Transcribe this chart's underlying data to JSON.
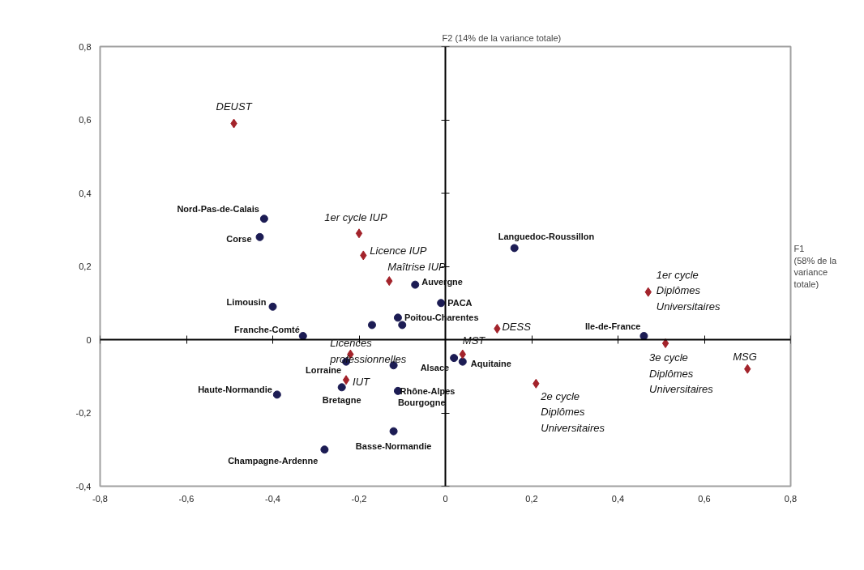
{
  "chart_data": {
    "type": "scatter",
    "xlabel": "F1\n(58% de la\nvariance\ntotale)",
    "ylabel": "F2 (14% de la variance totale)",
    "xlim": [
      -0.8,
      0.8
    ],
    "ylim": [
      -0.4,
      0.8
    ],
    "xticks": [
      {
        "value": -0.8,
        "label": "-0,8"
      },
      {
        "value": -0.6,
        "label": "-0,6"
      },
      {
        "value": -0.4,
        "label": "-0,4"
      },
      {
        "value": -0.2,
        "label": "-0,2"
      },
      0,
      {
        "value": 0.2,
        "label": "0,2"
      },
      {
        "value": 0.4,
        "label": "0,4"
      },
      {
        "value": 0.6,
        "label": "0,6"
      },
      {
        "value": 0.8,
        "label": "0,8"
      }
    ],
    "yticks": [
      {
        "value": -0.4,
        "label": "-0,4"
      },
      {
        "value": -0.2,
        "label": "-0,2"
      },
      0,
      {
        "value": 0.2,
        "label": "0,2"
      },
      {
        "value": 0.4,
        "label": "0,4"
      },
      {
        "value": 0.6,
        "label": "0,6"
      },
      {
        "value": 0.8,
        "label": "0,8"
      }
    ],
    "series": [
      {
        "color": "#1c1c54",
        "marker": "circle",
        "x": [
          -0.42,
          -0.43,
          0.16,
          -0.07,
          -0.01,
          -0.4,
          -0.11,
          -0.1,
          -0.17,
          -0.33,
          0.46,
          -0.23,
          -0.12,
          -0.11,
          -0.24,
          -0.39,
          -0.12,
          -0.28,
          0.04,
          0.02
        ],
        "values": [
          0.33,
          0.28,
          0.25,
          0.15,
          0.1,
          0.09,
          0.06,
          0.04,
          0.04,
          0.01,
          0.01,
          -0.06,
          -0.07,
          -0.14,
          -0.13,
          -0.15,
          -0.25,
          -0.3,
          -0.06,
          -0.05
        ]
      },
      {
        "color": "#a3232b",
        "marker": "diamond",
        "x": [
          -0.49,
          -0.2,
          -0.19,
          -0.13,
          -0.22,
          -0.23,
          0.04,
          0.12,
          0.21,
          0.47,
          0.51,
          0.7
        ],
        "values": [
          0.59,
          0.29,
          0.23,
          0.16,
          -0.04,
          -0.11,
          -0.04,
          0.03,
          -0.12,
          0.13,
          -0.01,
          -0.08
        ]
      }
    ],
    "annotations": [
      {
        "text": "Nord-Pas-de-Calais",
        "x": -0.42,
        "y": 0.33
      },
      {
        "text": "Corse",
        "x": -0.43,
        "y": 0.28
      },
      {
        "text": "Languedoc-Roussillon",
        "x": 0.16,
        "y": 0.25
      },
      {
        "text": "Auvergne",
        "x": -0.07,
        "y": 0.15
      },
      {
        "text": "PACA",
        "x": -0.01,
        "y": 0.1
      },
      {
        "text": "Limousin",
        "x": -0.4,
        "y": 0.09
      },
      {
        "text": "Poitou-Charentes",
        "x": -0.11,
        "y": 0.06
      },
      {
        "text": "Franche-Comté",
        "x": -0.33,
        "y": 0.01
      },
      {
        "text": "Ile-de-France",
        "x": 0.46,
        "y": 0.01
      },
      {
        "text": "Lorraine",
        "x": -0.23,
        "y": -0.06
      },
      {
        "text": "Rhône-Alpes",
        "x": -0.12,
        "y": -0.07
      },
      {
        "text": "Bourgogne",
        "x": -0.11,
        "y": -0.14
      },
      {
        "text": "Bretagne",
        "x": -0.24,
        "y": -0.13
      },
      {
        "text": "Haute-Normandie",
        "x": -0.39,
        "y": -0.15
      },
      {
        "text": "Basse-Normandie",
        "x": -0.12,
        "y": -0.25
      },
      {
        "text": "Champagne-Ardenne",
        "x": -0.28,
        "y": -0.3
      },
      {
        "text": "Aquitaine",
        "x": 0.04,
        "y": -0.06
      },
      {
        "text": "Alsace",
        "x": 0.02,
        "y": -0.05
      },
      {
        "text": "DEUST",
        "x": -0.49,
        "y": 0.59
      },
      {
        "text": "1er cycle IUP",
        "x": -0.2,
        "y": 0.29
      },
      {
        "text": "Licence IUP",
        "x": -0.19,
        "y": 0.23
      },
      {
        "text": "Maîtrise IUP",
        "x": -0.13,
        "y": 0.16
      },
      {
        "text": "Licences\nprofessionnelles",
        "x": -0.22,
        "y": -0.04
      },
      {
        "text": "IUT",
        "x": -0.23,
        "y": -0.11
      },
      {
        "text": "MST",
        "x": 0.04,
        "y": -0.04
      },
      {
        "text": "DESS",
        "x": 0.12,
        "y": 0.03
      },
      {
        "text": "2e cycle\nDiplômes\nUniversitaires",
        "x": 0.21,
        "y": -0.12
      },
      {
        "text": "1er cycle\nDiplômes\nUniversitaires",
        "x": 0.47,
        "y": 0.13
      },
      {
        "text": "3e cycle\nDiplômes\nUniversitaires",
        "x": 0.51,
        "y": -0.01
      },
      {
        "text": "MSG",
        "x": 0.7,
        "y": -0.08
      }
    ]
  }
}
